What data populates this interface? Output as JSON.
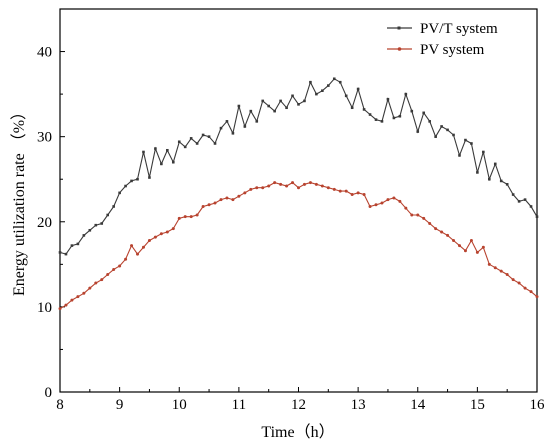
{
  "chart_data": {
    "type": "line",
    "xlabel": "Time（h）",
    "ylabel": "Energy utilization rate （%）",
    "xlim": [
      8,
      16
    ],
    "ylim": [
      0,
      45
    ],
    "xticks": [
      "8",
      "9",
      "10",
      "11",
      "12",
      "13",
      "14",
      "15",
      "16"
    ],
    "yticks": [
      "0",
      "10",
      "20",
      "30",
      "40"
    ],
    "grid": false,
    "legend_position": "top-right",
    "series": [
      {
        "name": "PV/T system",
        "color": "#3a3a3a",
        "x": [
          8.0,
          8.1,
          8.2,
          8.3,
          8.4,
          8.5,
          8.6,
          8.7,
          8.8,
          8.9,
          9.0,
          9.1,
          9.2,
          9.3,
          9.4,
          9.5,
          9.6,
          9.7,
          9.8,
          9.9,
          10.0,
          10.1,
          10.2,
          10.3,
          10.4,
          10.5,
          10.6,
          10.7,
          10.8,
          10.9,
          11.0,
          11.1,
          11.2,
          11.3,
          11.4,
          11.5,
          11.6,
          11.7,
          11.8,
          11.9,
          12.0,
          12.1,
          12.2,
          12.3,
          12.4,
          12.5,
          12.6,
          12.7,
          12.8,
          12.9,
          13.0,
          13.1,
          13.2,
          13.3,
          13.4,
          13.5,
          13.6,
          13.7,
          13.8,
          13.9,
          14.0,
          14.1,
          14.2,
          14.3,
          14.4,
          14.5,
          14.6,
          14.7,
          14.8,
          14.9,
          15.0,
          15.1,
          15.2,
          15.3,
          15.4,
          15.5,
          15.6,
          15.7,
          15.8,
          15.9,
          16.0
        ],
        "y": [
          16.4,
          16.2,
          17.2,
          17.4,
          18.4,
          19.0,
          19.6,
          19.8,
          20.8,
          21.8,
          23.4,
          24.2,
          24.8,
          25.0,
          28.2,
          25.2,
          28.6,
          26.8,
          28.4,
          27.0,
          29.4,
          28.8,
          29.8,
          29.2,
          30.2,
          30.0,
          29.2,
          31.0,
          31.8,
          30.4,
          33.6,
          31.2,
          33.0,
          31.8,
          34.2,
          33.6,
          33.0,
          34.2,
          33.4,
          34.8,
          33.8,
          34.2,
          36.4,
          35.0,
          35.4,
          36.0,
          36.8,
          36.4,
          34.8,
          33.4,
          35.6,
          33.2,
          32.6,
          32.0,
          31.8,
          34.4,
          32.2,
          32.4,
          35.0,
          33.0,
          30.6,
          32.8,
          31.8,
          30.0,
          31.2,
          30.8,
          30.2,
          27.8,
          29.6,
          29.2,
          25.8,
          28.2,
          25.0,
          26.8,
          24.8,
          24.4,
          23.2,
          22.4,
          22.6,
          21.8,
          20.6
        ]
      },
      {
        "name": "PV system",
        "color": "#b8432f",
        "x": [
          8.0,
          8.1,
          8.2,
          8.3,
          8.4,
          8.5,
          8.6,
          8.7,
          8.8,
          8.9,
          9.0,
          9.1,
          9.2,
          9.3,
          9.4,
          9.5,
          9.6,
          9.7,
          9.8,
          9.9,
          10.0,
          10.1,
          10.2,
          10.3,
          10.4,
          10.5,
          10.6,
          10.7,
          10.8,
          10.9,
          11.0,
          11.1,
          11.2,
          11.3,
          11.4,
          11.5,
          11.6,
          11.7,
          11.8,
          11.9,
          12.0,
          12.1,
          12.2,
          12.3,
          12.4,
          12.5,
          12.6,
          12.7,
          12.8,
          12.9,
          13.0,
          13.1,
          13.2,
          13.3,
          13.4,
          13.5,
          13.6,
          13.7,
          13.8,
          13.9,
          14.0,
          14.1,
          14.2,
          14.3,
          14.4,
          14.5,
          14.6,
          14.7,
          14.8,
          14.9,
          15.0,
          15.1,
          15.2,
          15.3,
          15.4,
          15.5,
          15.6,
          15.7,
          15.8,
          15.9,
          16.0
        ],
        "y": [
          9.8,
          10.2,
          10.8,
          11.2,
          11.6,
          12.2,
          12.8,
          13.2,
          13.8,
          14.4,
          14.8,
          15.6,
          17.2,
          16.2,
          17.0,
          17.8,
          18.2,
          18.6,
          18.8,
          19.2,
          20.4,
          20.6,
          20.6,
          20.8,
          21.8,
          22.0,
          22.2,
          22.6,
          22.8,
          22.6,
          23.0,
          23.4,
          23.8,
          24.0,
          24.0,
          24.2,
          24.6,
          24.4,
          24.2,
          24.6,
          24.0,
          24.4,
          24.6,
          24.4,
          24.2,
          24.0,
          23.8,
          23.6,
          23.6,
          23.2,
          23.4,
          23.2,
          21.8,
          22.0,
          22.2,
          22.6,
          22.8,
          22.4,
          21.6,
          20.8,
          20.8,
          20.4,
          19.8,
          19.2,
          18.8,
          18.4,
          17.8,
          17.2,
          16.6,
          17.8,
          16.4,
          17.0,
          15.0,
          14.6,
          14.2,
          13.8,
          13.2,
          12.8,
          12.2,
          11.8,
          11.2
        ]
      }
    ]
  }
}
